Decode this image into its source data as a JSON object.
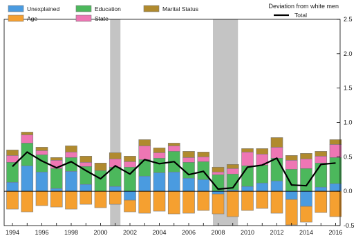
{
  "chart_data": {
    "type": "bar",
    "subtype": "stacked bar with line overlay",
    "title": "",
    "xlabel": "",
    "ylabel": "Deviation from white men",
    "x": [
      1994,
      1995,
      1996,
      1997,
      1998,
      1999,
      2000,
      2001,
      2002,
      2003,
      2004,
      2005,
      2006,
      2007,
      2008,
      2009,
      2010,
      2011,
      2012,
      2013,
      2014,
      2015,
      2016
    ],
    "xticks": [
      "1994",
      "1996",
      "1998",
      "2000",
      "2002",
      "2004",
      "2006",
      "2008",
      "2010",
      "2012",
      "2014",
      "2016"
    ],
    "yticks": [
      "-0.5",
      "0.0",
      "0.5",
      "1.0",
      "1.5",
      "2.0",
      "2.5"
    ],
    "ylim": [
      -0.5,
      2.5
    ],
    "grid": false,
    "legend_position": "top",
    "recession_shading": [
      [
        2001,
        2001
      ],
      [
        2008,
        2009
      ]
    ],
    "series": [
      {
        "name": "Unexplained",
        "color": "#4a9be0",
        "values": [
          0.13,
          0.37,
          0.28,
          0.04,
          0.29,
          0.1,
          0.0,
          0.07,
          -0.13,
          0.22,
          0.27,
          0.28,
          0.19,
          0.17,
          -0.04,
          0.02,
          0.07,
          0.12,
          0.15,
          -0.12,
          -0.22,
          0.06,
          0.11
        ]
      },
      {
        "name": "Age",
        "color": "#f5a030",
        "values": [
          -0.26,
          -0.3,
          -0.21,
          -0.23,
          -0.26,
          -0.19,
          -0.24,
          -0.19,
          -0.17,
          -0.32,
          -0.29,
          -0.33,
          -0.32,
          -0.28,
          -0.29,
          -0.37,
          -0.28,
          -0.25,
          -0.32,
          -0.37,
          -0.23,
          -0.31,
          -0.37
        ]
      },
      {
        "name": "Education",
        "color": "#4cb85c",
        "values": [
          0.29,
          0.33,
          0.25,
          0.29,
          0.2,
          0.26,
          0.3,
          0.28,
          0.35,
          0.24,
          0.21,
          0.3,
          0.23,
          0.26,
          0.24,
          0.23,
          0.3,
          0.26,
          0.33,
          0.32,
          0.33,
          0.35,
          0.38
        ]
      },
      {
        "name": "State",
        "color": "#ee76b4",
        "values": [
          0.1,
          0.12,
          0.06,
          0.12,
          0.08,
          0.06,
          0.0,
          0.12,
          0.08,
          0.2,
          0.08,
          0.08,
          0.07,
          0.07,
          0.04,
          0.08,
          0.2,
          0.16,
          0.16,
          0.13,
          0.14,
          0.1,
          0.19
        ]
      },
      {
        "name": "Marital Status",
        "color": "#b08a2e",
        "values": [
          0.08,
          0.04,
          0.05,
          0.04,
          0.09,
          0.09,
          0.11,
          0.09,
          0.08,
          0.09,
          0.07,
          0.04,
          0.09,
          0.07,
          0.07,
          0.06,
          0.05,
          0.08,
          0.14,
          0.07,
          0.08,
          0.07,
          0.07
        ]
      },
      {
        "name": "Total",
        "color": "#000000",
        "type": "line",
        "values": [
          0.36,
          0.57,
          0.44,
          0.34,
          0.43,
          0.3,
          0.18,
          0.37,
          0.25,
          0.46,
          0.4,
          0.43,
          0.24,
          0.29,
          0.03,
          0.05,
          0.35,
          0.38,
          0.48,
          0.09,
          0.08,
          0.39,
          0.41
        ]
      }
    ]
  }
}
